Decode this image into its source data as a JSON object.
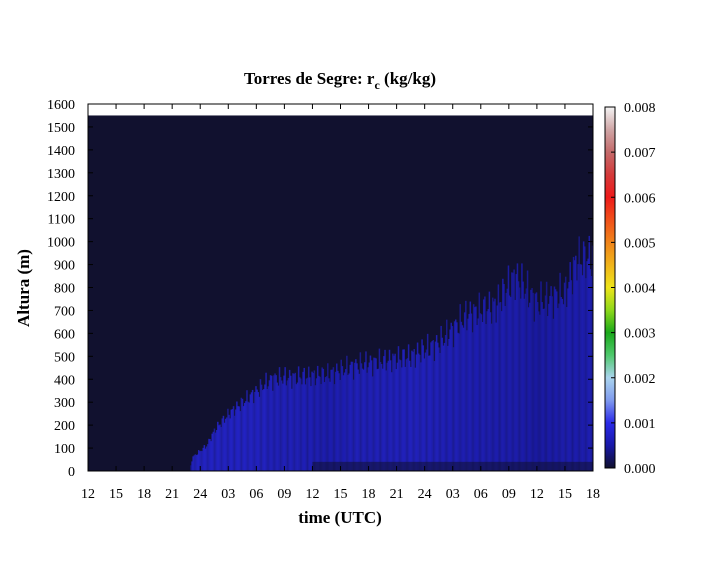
{
  "chart_data": {
    "type": "heatmap",
    "title": {
      "main": "Torres de Segre: r",
      "subscript": "c",
      "suffix": " (kg/kg)"
    },
    "xlabel": "time (UTC)",
    "ylabel": "Altura (m)",
    "x_tick_labels": [
      "12",
      "15",
      "18",
      "21",
      "24",
      "03",
      "06",
      "09",
      "12",
      "15",
      "18",
      "21",
      "24",
      "03",
      "06",
      "09",
      "12",
      "15",
      "18"
    ],
    "y_ticks": [
      0,
      100,
      200,
      300,
      400,
      500,
      600,
      700,
      800,
      900,
      1000,
      1100,
      1200,
      1300,
      1400,
      1500,
      1600
    ],
    "ylim": [
      0,
      1600
    ],
    "data_top_m": 1550,
    "colorbar": {
      "ticks": [
        "0.000",
        "0.001",
        "0.002",
        "0.003",
        "0.004",
        "0.005",
        "0.006",
        "0.007",
        "0.008"
      ],
      "range": [
        0,
        0.008
      ],
      "stops": [
        {
          "v": 0.0,
          "color": "#11112f"
        },
        {
          "v": 0.0005,
          "color": "#1818a8"
        },
        {
          "v": 0.001,
          "color": "#2a2ae8"
        },
        {
          "v": 0.0015,
          "color": "#7f9aee"
        },
        {
          "v": 0.002,
          "color": "#aad4ee"
        },
        {
          "v": 0.0025,
          "color": "#4ec86c"
        },
        {
          "v": 0.003,
          "color": "#1aa81a"
        },
        {
          "v": 0.0035,
          "color": "#8ed81a"
        },
        {
          "v": 0.004,
          "color": "#eee41a"
        },
        {
          "v": 0.0045,
          "color": "#f0b41a"
        },
        {
          "v": 0.005,
          "color": "#f0841a"
        },
        {
          "v": 0.0055,
          "color": "#f0501a"
        },
        {
          "v": 0.006,
          "color": "#ee1a1a"
        },
        {
          "v": 0.0065,
          "color": "#d43a3a"
        },
        {
          "v": 0.007,
          "color": "#c46a6a"
        },
        {
          "v": 0.0075,
          "color": "#d0a6a6"
        },
        {
          "v": 0.008,
          "color": "#f4f4f4"
        }
      ]
    },
    "cloud_layer": {
      "description_index_unit": "x tick index (0 = first 12 UTC, 18 = last 18 UTC)",
      "profile": [
        {
          "x": 3.6,
          "top": 0,
          "value": 0.0
        },
        {
          "x": 3.7,
          "top": 60,
          "value": 0.0009
        },
        {
          "x": 4.2,
          "top": 110,
          "value": 0.0009
        },
        {
          "x": 4.5,
          "top": 180,
          "value": 0.0009
        },
        {
          "x": 5.0,
          "top": 250,
          "value": 0.0009
        },
        {
          "x": 5.7,
          "top": 320,
          "value": 0.0009
        },
        {
          "x": 6.3,
          "top": 380,
          "value": 0.00085
        },
        {
          "x": 6.6,
          "top": 405,
          "value": 0.0008
        },
        {
          "x": 7.5,
          "top": 410,
          "value": 0.0008
        },
        {
          "x": 8.5,
          "top": 420,
          "value": 0.0007
        },
        {
          "x": 9.5,
          "top": 460,
          "value": 0.0008
        },
        {
          "x": 10.5,
          "top": 480,
          "value": 0.0008
        },
        {
          "x": 11.5,
          "top": 500,
          "value": 0.00085
        },
        {
          "x": 12.5,
          "top": 560,
          "value": 0.0008
        },
        {
          "x": 13.5,
          "top": 680,
          "value": 0.00075
        },
        {
          "x": 14.5,
          "top": 720,
          "value": 0.0007
        },
        {
          "x": 15.2,
          "top": 850,
          "value": 0.0007
        },
        {
          "x": 16.0,
          "top": 730,
          "value": 0.0006
        },
        {
          "x": 17.0,
          "top": 780,
          "value": 0.0007
        },
        {
          "x": 17.4,
          "top": 920,
          "value": 0.0007
        },
        {
          "x": 18.0,
          "top": 930,
          "value": 0.00075
        }
      ]
    }
  }
}
